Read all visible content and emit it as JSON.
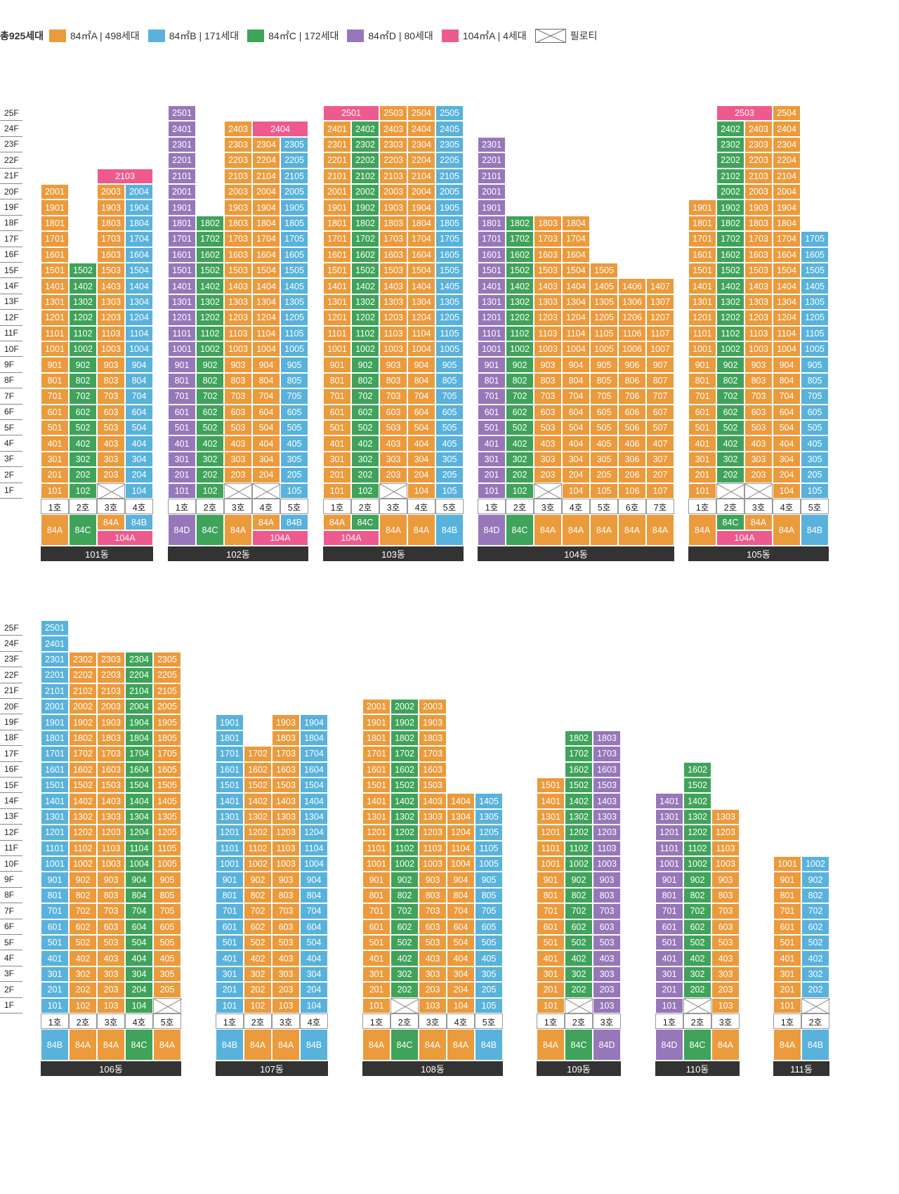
{
  "legend": {
    "total": "총925세대",
    "items": [
      {
        "key": "84A",
        "label": "84㎡A | 498세대",
        "color": "#EB9A3C"
      },
      {
        "key": "84B",
        "label": "84㎡B | 171세대",
        "color": "#58B2DC"
      },
      {
        "key": "84C",
        "label": "84㎡C | 172세대",
        "color": "#3FA35A"
      },
      {
        "key": "84D",
        "label": "84㎡D | 80세대",
        "color": "#9677BA"
      },
      {
        "key": "104A",
        "label": "104㎡A | 4세대",
        "color": "#EE5A8E"
      }
    ],
    "pilotis_label": "필로티"
  },
  "floor_labels": [
    "25F",
    "24F",
    "23F",
    "22F",
    "21F",
    "20F",
    "19F",
    "18F",
    "17F",
    "16F",
    "15F",
    "14F",
    "13F",
    "12F",
    "11F",
    "10F",
    "9F",
    "8F",
    "7F",
    "6F",
    "5F",
    "4F",
    "3F",
    "2F",
    "1F"
  ],
  "buildings": [
    {
      "name": "101동",
      "row": 0,
      "cols": [
        {
          "ho": "1호",
          "type": "84A",
          "floors": [
            1,
            20
          ]
        },
        {
          "ho": "2호",
          "type": "84C",
          "floors": [
            1,
            15
          ]
        },
        {
          "ho": "3호",
          "type": "84A",
          "floors": [
            2,
            20
          ],
          "pilotis": true
        },
        {
          "ho": "4호",
          "type": "84B",
          "floors": [
            1,
            20
          ]
        }
      ],
      "specials": [
        {
          "label": "2103",
          "type": "104A",
          "col": 2,
          "span": 2,
          "floor": 21
        }
      ],
      "type_cells": [
        {
          "col": 0,
          "span": 1,
          "part": "full",
          "label": "84A",
          "type": "84A"
        },
        {
          "col": 1,
          "span": 1,
          "part": "full",
          "label": "84C",
          "type": "84C"
        },
        {
          "col": 2,
          "span": 1,
          "part": "top",
          "label": "84A",
          "type": "84A"
        },
        {
          "col": 3,
          "span": 1,
          "part": "top",
          "label": "84B",
          "type": "84B"
        },
        {
          "col": 2,
          "span": 2,
          "part": "bottom",
          "label": "104A",
          "type": "104A"
        }
      ]
    },
    {
      "name": "102동",
      "row": 0,
      "cols": [
        {
          "ho": "1호",
          "type": "84D",
          "floors": [
            1,
            25
          ]
        },
        {
          "ho": "2호",
          "type": "84C",
          "floors": [
            1,
            18
          ]
        },
        {
          "ho": "3호",
          "type": "84A",
          "floors": [
            2,
            24
          ],
          "pilotis": true
        },
        {
          "ho": "4호",
          "type": "84A",
          "floors": [
            2,
            23
          ],
          "pilotis": true
        },
        {
          "ho": "5호",
          "type": "84B",
          "floors": [
            1,
            23
          ]
        }
      ],
      "specials": [
        {
          "label": "2404",
          "type": "104A",
          "col": 3,
          "span": 2,
          "floor": 24
        }
      ],
      "type_cells": [
        {
          "col": 0,
          "span": 1,
          "part": "full",
          "label": "84D",
          "type": "84D"
        },
        {
          "col": 1,
          "span": 1,
          "part": "full",
          "label": "84C",
          "type": "84C"
        },
        {
          "col": 2,
          "span": 1,
          "part": "full",
          "label": "84A",
          "type": "84A"
        },
        {
          "col": 3,
          "span": 1,
          "part": "top",
          "label": "84A",
          "type": "84A"
        },
        {
          "col": 4,
          "span": 1,
          "part": "top",
          "label": "84B",
          "type": "84B"
        },
        {
          "col": 3,
          "span": 2,
          "part": "bottom",
          "label": "104A",
          "type": "104A"
        }
      ]
    },
    {
      "name": "103동",
      "row": 0,
      "cols": [
        {
          "ho": "1호",
          "type": "84A",
          "floors": [
            1,
            24
          ]
        },
        {
          "ho": "2호",
          "type": "84C",
          "floors": [
            1,
            24
          ]
        },
        {
          "ho": "3호",
          "type": "84A",
          "floors": [
            2,
            25
          ],
          "pilotis": true
        },
        {
          "ho": "4호",
          "type": "84A",
          "floors": [
            1,
            25
          ]
        },
        {
          "ho": "5호",
          "type": "84B",
          "floors": [
            1,
            25
          ]
        }
      ],
      "specials": [
        {
          "label": "2501",
          "type": "104A",
          "col": 0,
          "span": 2,
          "floor": 25
        }
      ],
      "type_cells": [
        {
          "col": 0,
          "span": 1,
          "part": "top",
          "label": "84A",
          "type": "84A"
        },
        {
          "col": 1,
          "span": 1,
          "part": "top",
          "label": "84C",
          "type": "84C"
        },
        {
          "col": 0,
          "span": 2,
          "part": "bottom",
          "label": "104A",
          "type": "104A"
        },
        {
          "col": 2,
          "span": 1,
          "part": "full",
          "label": "84A",
          "type": "84A"
        },
        {
          "col": 3,
          "span": 1,
          "part": "full",
          "label": "84A",
          "type": "84A"
        },
        {
          "col": 4,
          "span": 1,
          "part": "full",
          "label": "84B",
          "type": "84B"
        }
      ]
    },
    {
      "name": "104동",
      "row": 0,
      "cols": [
        {
          "ho": "1호",
          "type": "84D",
          "floors": [
            1,
            23
          ]
        },
        {
          "ho": "2호",
          "type": "84C",
          "floors": [
            1,
            18
          ]
        },
        {
          "ho": "3호",
          "type": "84A",
          "floors": [
            2,
            18
          ],
          "pilotis": true
        },
        {
          "ho": "4호",
          "type": "84A",
          "floors": [
            1,
            18
          ]
        },
        {
          "ho": "5호",
          "type": "84A",
          "floors": [
            1,
            15
          ]
        },
        {
          "ho": "6호",
          "type": "84A",
          "floors": [
            1,
            14
          ]
        },
        {
          "ho": "7호",
          "type": "84A",
          "floors": [
            1,
            14
          ]
        }
      ],
      "specials": [],
      "type_cells": [
        {
          "col": 0,
          "span": 1,
          "part": "full",
          "label": "84D",
          "type": "84D"
        },
        {
          "col": 1,
          "span": 1,
          "part": "full",
          "label": "84C",
          "type": "84C"
        },
        {
          "col": 2,
          "span": 1,
          "part": "full",
          "label": "84A",
          "type": "84A"
        },
        {
          "col": 3,
          "span": 1,
          "part": "full",
          "label": "84A",
          "type": "84A"
        },
        {
          "col": 4,
          "span": 1,
          "part": "full",
          "label": "84A",
          "type": "84A"
        },
        {
          "col": 5,
          "span": 1,
          "part": "full",
          "label": "84A",
          "type": "84A"
        },
        {
          "col": 6,
          "span": 1,
          "part": "full",
          "label": "84A",
          "type": "84A"
        }
      ]
    },
    {
      "name": "105동",
      "row": 0,
      "cols": [
        {
          "ho": "1호",
          "type": "84A",
          "floors": [
            1,
            19
          ]
        },
        {
          "ho": "2호",
          "type": "84C",
          "floors": [
            2,
            24
          ],
          "pilotis": true
        },
        {
          "ho": "3호",
          "type": "84A",
          "floors": [
            2,
            24
          ],
          "pilotis": true
        },
        {
          "ho": "4호",
          "type": "84A",
          "floors": [
            1,
            25
          ]
        },
        {
          "ho": "5호",
          "type": "84B",
          "floors": [
            1,
            17
          ]
        }
      ],
      "specials": [
        {
          "label": "2503",
          "type": "104A",
          "col": 1,
          "span": 2,
          "floor": 25
        }
      ],
      "type_cells": [
        {
          "col": 0,
          "span": 1,
          "part": "full",
          "label": "84A",
          "type": "84A"
        },
        {
          "col": 1,
          "span": 1,
          "part": "top",
          "label": "84C",
          "type": "84C"
        },
        {
          "col": 2,
          "span": 1,
          "part": "top",
          "label": "84A",
          "type": "84A"
        },
        {
          "col": 1,
          "span": 2,
          "part": "bottom",
          "label": "104A",
          "type": "104A"
        },
        {
          "col": 3,
          "span": 1,
          "part": "full",
          "label": "84A",
          "type": "84A"
        },
        {
          "col": 4,
          "span": 1,
          "part": "full",
          "label": "84B",
          "type": "84B"
        }
      ]
    },
    {
      "name": "106동",
      "row": 1,
      "cols": [
        {
          "ho": "1호",
          "type": "84B",
          "floors": [
            1,
            25
          ]
        },
        {
          "ho": "2호",
          "type": "84A",
          "floors": [
            1,
            23
          ]
        },
        {
          "ho": "3호",
          "type": "84A",
          "floors": [
            1,
            23
          ]
        },
        {
          "ho": "4호",
          "type": "84C",
          "floors": [
            1,
            23
          ]
        },
        {
          "ho": "5호",
          "type": "84A",
          "floors": [
            2,
            23
          ],
          "pilotis": true
        }
      ],
      "specials": [],
      "type_cells": [
        {
          "col": 0,
          "span": 1,
          "part": "full",
          "label": "84B",
          "type": "84B"
        },
        {
          "col": 1,
          "span": 1,
          "part": "full",
          "label": "84A",
          "type": "84A"
        },
        {
          "col": 2,
          "span": 1,
          "part": "full",
          "label": "84A",
          "type": "84A"
        },
        {
          "col": 3,
          "span": 1,
          "part": "full",
          "label": "84C",
          "type": "84C"
        },
        {
          "col": 4,
          "span": 1,
          "part": "full",
          "label": "84A",
          "type": "84A"
        }
      ]
    },
    {
      "name": "107동",
      "row": 1,
      "cols": [
        {
          "ho": "1호",
          "type": "84B",
          "floors": [
            1,
            19
          ]
        },
        {
          "ho": "2호",
          "type": "84A",
          "floors": [
            1,
            17
          ]
        },
        {
          "ho": "3호",
          "type": "84A",
          "floors": [
            1,
            19
          ]
        },
        {
          "ho": "4호",
          "type": "84B",
          "floors": [
            1,
            19
          ]
        }
      ],
      "specials": [],
      "type_cells": [
        {
          "col": 0,
          "span": 1,
          "part": "full",
          "label": "84B",
          "type": "84B"
        },
        {
          "col": 1,
          "span": 1,
          "part": "full",
          "label": "84A",
          "type": "84A"
        },
        {
          "col": 2,
          "span": 1,
          "part": "full",
          "label": "84A",
          "type": "84A"
        },
        {
          "col": 3,
          "span": 1,
          "part": "full",
          "label": "84B",
          "type": "84B"
        }
      ]
    },
    {
      "name": "108동",
      "row": 1,
      "cols": [
        {
          "ho": "1호",
          "type": "84A",
          "floors": [
            1,
            20
          ]
        },
        {
          "ho": "2호",
          "type": "84C",
          "floors": [
            2,
            20
          ],
          "pilotis": true
        },
        {
          "ho": "3호",
          "type": "84A",
          "floors": [
            1,
            20
          ]
        },
        {
          "ho": "4호",
          "type": "84A",
          "floors": [
            1,
            14
          ]
        },
        {
          "ho": "5호",
          "type": "84B",
          "floors": [
            1,
            14
          ]
        }
      ],
      "specials": [],
      "type_cells": [
        {
          "col": 0,
          "span": 1,
          "part": "full",
          "label": "84A",
          "type": "84A"
        },
        {
          "col": 1,
          "span": 1,
          "part": "full",
          "label": "84C",
          "type": "84C"
        },
        {
          "col": 2,
          "span": 1,
          "part": "full",
          "label": "84A",
          "type": "84A"
        },
        {
          "col": 3,
          "span": 1,
          "part": "full",
          "label": "84A",
          "type": "84A"
        },
        {
          "col": 4,
          "span": 1,
          "part": "full",
          "label": "84B",
          "type": "84B"
        }
      ]
    },
    {
      "name": "109동",
      "row": 1,
      "cols": [
        {
          "ho": "1호",
          "type": "84A",
          "floors": [
            1,
            15
          ]
        },
        {
          "ho": "2호",
          "type": "84C",
          "floors": [
            2,
            18
          ],
          "pilotis": true
        },
        {
          "ho": "3호",
          "type": "84D",
          "floors": [
            1,
            18
          ]
        }
      ],
      "specials": [],
      "type_cells": [
        {
          "col": 0,
          "span": 1,
          "part": "full",
          "label": "84A",
          "type": "84A"
        },
        {
          "col": 1,
          "span": 1,
          "part": "full",
          "label": "84C",
          "type": "84C"
        },
        {
          "col": 2,
          "span": 1,
          "part": "full",
          "label": "84D",
          "type": "84D"
        }
      ]
    },
    {
      "name": "110동",
      "row": 1,
      "cols": [
        {
          "ho": "1호",
          "type": "84D",
          "floors": [
            1,
            14
          ]
        },
        {
          "ho": "2호",
          "type": "84C",
          "floors": [
            2,
            16
          ],
          "pilotis": true
        },
        {
          "ho": "3호",
          "type": "84A",
          "floors": [
            1,
            13
          ]
        }
      ],
      "specials": [],
      "type_cells": [
        {
          "col": 0,
          "span": 1,
          "part": "full",
          "label": "84D",
          "type": "84D"
        },
        {
          "col": 1,
          "span": 1,
          "part": "full",
          "label": "84C",
          "type": "84C"
        },
        {
          "col": 2,
          "span": 1,
          "part": "full",
          "label": "84A",
          "type": "84A"
        }
      ]
    },
    {
      "name": "111동",
      "row": 1,
      "cols": [
        {
          "ho": "1호",
          "type": "84A",
          "floors": [
            1,
            10
          ]
        },
        {
          "ho": "2호",
          "type": "84B",
          "floors": [
            2,
            10
          ],
          "pilotis": true
        }
      ],
      "specials": [],
      "type_cells": [
        {
          "col": 0,
          "span": 1,
          "part": "full",
          "label": "84A",
          "type": "84A"
        },
        {
          "col": 1,
          "span": 1,
          "part": "full",
          "label": "84B",
          "type": "84B"
        }
      ]
    }
  ]
}
